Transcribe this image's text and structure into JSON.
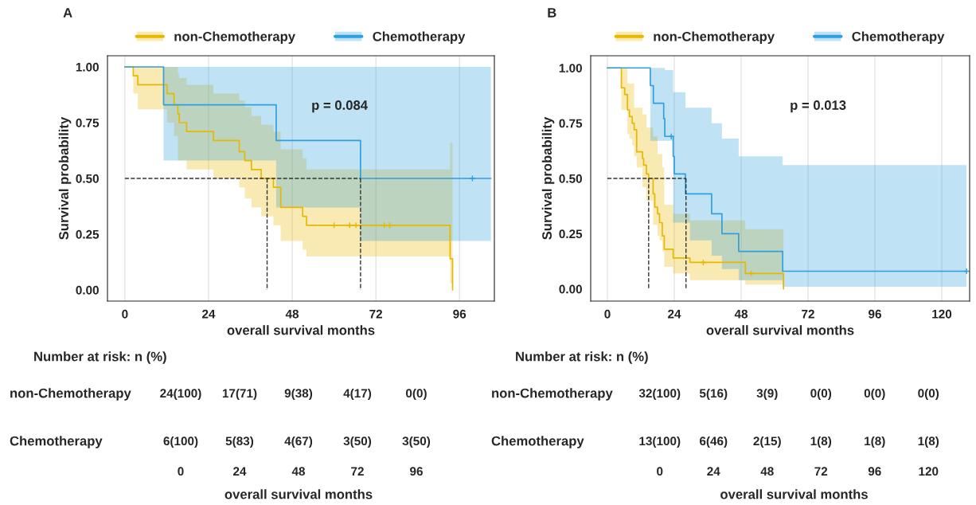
{
  "chart_data": [
    {
      "type": "step",
      "title": "A",
      "xlabel": "overall survival months",
      "ylabel": "Survival probability",
      "xlim": [
        -5,
        106
      ],
      "xticks": [
        0,
        24,
        48,
        72,
        96
      ],
      "ylim": [
        -0.05,
        1.05
      ],
      "yticks": [
        {
          "value": 0,
          "label": "0.00"
        },
        {
          "value": 0.25,
          "label": "0.25"
        },
        {
          "value": 0.5,
          "label": "0.50"
        },
        {
          "value": 0.75,
          "label": "0.75"
        },
        {
          "value": 1,
          "label": "1.00"
        }
      ],
      "grid": "x",
      "legend": "top",
      "annotations": [
        "p = 0.084"
      ],
      "series": [
        {
          "name": "non-Chemotherapy",
          "color": "#e7b800",
          "x": [
            0,
            2.4,
            3.7,
            12.1,
            14.1,
            15.2,
            15.6,
            17.7,
            25.4,
            32.8,
            34.4,
            36.3,
            39.1,
            42.6,
            44.7,
            51.0,
            52.1,
            93.3,
            94.0
          ],
          "values": [
            1,
            0.96,
            0.92,
            0.88,
            0.83,
            0.79,
            0.75,
            0.71,
            0.67,
            0.62,
            0.58,
            0.54,
            0.5,
            0.46,
            0.37,
            0.33,
            0.29,
            0.14,
            0
          ],
          "lower": [
            1,
            0.88,
            0.81,
            0.75,
            0.69,
            0.58,
            0.58,
            0.54,
            0.5,
            0.46,
            0.41,
            0.37,
            0.33,
            0.29,
            0.22,
            0.18,
            0.15,
            0.03,
            0
          ],
          "upper": [
            1,
            1,
            1,
            1,
            1,
            0.97,
            0.95,
            0.92,
            0.88,
            0.85,
            0.82,
            0.78,
            0.74,
            0.71,
            0.63,
            0.59,
            0.54,
            0.66,
            0.66
          ]
        },
        {
          "name": "Chemotherapy",
          "color": "#2e9fdf",
          "x": [
            0,
            11.1,
            43.4,
            67.6,
            105
          ],
          "values": [
            1,
            0.83,
            0.67,
            0.5,
            0.5
          ],
          "lower": [
            1,
            0.58,
            0.37,
            0.22,
            0.22
          ],
          "upper": [
            1,
            1,
            1,
            1,
            1
          ]
        },
        {
          "type": "scatter",
          "marker": "cross",
          "color": "#e7b800",
          "x": [
            60.0,
            64.5,
            66.3,
            74.4,
            76.0
          ],
          "values": [
            0.29,
            0.29,
            0.29,
            0.29,
            0.29
          ]
        },
        {
          "type": "scatter",
          "marker": "cross",
          "color": "#2e9fdf",
          "x": [
            99.7
          ],
          "values": [
            0.5
          ]
        },
        {
          "type": "line",
          "line_style": "dashed",
          "color": "#333333",
          "x": [
            0,
            67.6
          ],
          "values": [
            0.5,
            0.5
          ]
        },
        {
          "type": "line",
          "line_style": "dashed",
          "color": "#333333",
          "x": [
            40.8,
            40.8
          ],
          "values": [
            0.5,
            0
          ]
        },
        {
          "type": "line",
          "line_style": "dashed",
          "color": "#333333",
          "x": [
            67.6,
            67.6
          ],
          "values": [
            0.5,
            0
          ]
        }
      ]
    },
    {
      "type": "step",
      "title": "B",
      "xlabel": "overall survival months",
      "ylabel": "Survival probability",
      "xlim": [
        -6,
        130
      ],
      "xticks": [
        0,
        24,
        48,
        72,
        96,
        120
      ],
      "ylim": [
        -0.055,
        1.055
      ],
      "yticks": [
        {
          "value": 0,
          "label": "0.00"
        },
        {
          "value": 0.25,
          "label": "0.25"
        },
        {
          "value": 0.5,
          "label": "0.50"
        },
        {
          "value": 0.75,
          "label": "0.75"
        },
        {
          "value": 1,
          "label": "1.00"
        }
      ],
      "grid": "x",
      "legend": "top",
      "annotations": [
        "p = 0.013"
      ],
      "series": [
        {
          "name": "non-Chemotherapy",
          "color": "#e7b800",
          "x": [
            0,
            5.0,
            6.2,
            7.2,
            7.9,
            8.9,
            9.6,
            10.5,
            12.6,
            13.0,
            14.0,
            14.8,
            16.4,
            17.0,
            18.0,
            18.7,
            19.7,
            20.4,
            23.6,
            29.6,
            49.5,
            63.2
          ],
          "values": [
            1,
            0.91,
            0.88,
            0.81,
            0.78,
            0.75,
            0.72,
            0.62,
            0.59,
            0.56,
            0.52,
            0.5,
            0.43,
            0.37,
            0.34,
            0.3,
            0.24,
            0.18,
            0.14,
            0.12,
            0.07,
            0
          ],
          "lower": [
            1,
            0.81,
            0.81,
            0.7,
            0.68,
            0.65,
            0.6,
            0.55,
            0.46,
            0.46,
            0.4,
            0.4,
            0.29,
            0.29,
            0.24,
            0.22,
            0.17,
            0.1,
            0.07,
            0.04,
            0.02,
            0
          ],
          "upper": [
            1,
            1,
            1,
            0.93,
            0.93,
            0.93,
            0.82,
            0.82,
            0.79,
            0.79,
            0.73,
            0.73,
            0.69,
            0.69,
            0.61,
            0.61,
            0.55,
            0.38,
            0.34,
            0.31,
            0.27,
            0.27
          ]
        },
        {
          "name": "Chemotherapy",
          "color": "#2e9fdf",
          "x": [
            0,
            15.4,
            16.5,
            20.2,
            20.6,
            23.6,
            24.0,
            28.0,
            29.6,
            37.4,
            41.1,
            47.1,
            62.9,
            128.9
          ],
          "values": [
            1,
            0.92,
            0.84,
            0.77,
            0.69,
            0.6,
            0.52,
            0.43,
            0.43,
            0.34,
            0.25,
            0.17,
            0.08,
            0.08
          ],
          "lower": [
            1,
            0.67,
            0.67,
            0.67,
            0.67,
            0.3,
            0.3,
            0.3,
            0.22,
            0.15,
            0.09,
            0.04,
            0.01,
            0.01
          ],
          "upper": [
            1,
            1,
            1,
            1,
            0.99,
            0.89,
            0.89,
            0.82,
            0.82,
            0.75,
            0.68,
            0.6,
            0.56,
            0.56
          ]
        },
        {
          "type": "scatter",
          "marker": "cross",
          "color": "#e7b800",
          "x": [
            34.4,
            51.6
          ],
          "values": [
            0.12,
            0.07
          ]
        },
        {
          "type": "scatter",
          "marker": "cross",
          "color": "#2e9fdf",
          "x": [
            22.9,
            128.9
          ],
          "values": [
            0.69,
            0.08
          ]
        },
        {
          "type": "line",
          "line_style": "dashed",
          "color": "#333333",
          "x": [
            0,
            28.2
          ],
          "values": [
            0.5,
            0.5
          ]
        },
        {
          "type": "line",
          "line_style": "dashed",
          "color": "#333333",
          "x": [
            14.8,
            14.8
          ],
          "values": [
            0.5,
            0
          ]
        },
        {
          "type": "line",
          "line_style": "dashed",
          "color": "#333333",
          "x": [
            28.2,
            28.2
          ],
          "values": [
            0.5,
            0
          ]
        }
      ]
    },
    {
      "type": "heatmap",
      "title": "Number at risk: n (%)",
      "xlabel": "overall survival months",
      "categories": [
        "0",
        "24",
        "48",
        "72",
        "96"
      ],
      "y_categories": [
        "non-Chemotherapy",
        "Chemotherapy"
      ],
      "cells": [
        [
          null,
          null,
          null,
          null,
          null
        ],
        [
          null,
          null,
          null,
          null,
          null
        ]
      ],
      "cell_labels": [
        [
          "24(100)",
          "17(71)",
          "9(38)",
          "4(17)",
          "0(0)"
        ],
        [
          "6(100)",
          "5(83)",
          "4(67)",
          "3(50)",
          "3(50)"
        ]
      ]
    },
    {
      "type": "heatmap",
      "title": "Number at risk: n (%)",
      "xlabel": "overall survival months",
      "categories": [
        "0",
        "24",
        "48",
        "72",
        "96",
        "120"
      ],
      "y_categories": [
        "non-Chemotherapy",
        "Chemotherapy"
      ],
      "cells": [
        [
          null,
          null,
          null,
          null,
          null,
          null
        ],
        [
          null,
          null,
          null,
          null,
          null,
          null
        ]
      ],
      "cell_labels": [
        [
          "32(100)",
          "5(16)",
          "3(9)",
          "0(0)",
          "0(0)",
          "0(0)"
        ],
        [
          "13(100)",
          "6(46)",
          "2(15)",
          "1(8)",
          "1(8)",
          "1(8)"
        ]
      ]
    }
  ]
}
